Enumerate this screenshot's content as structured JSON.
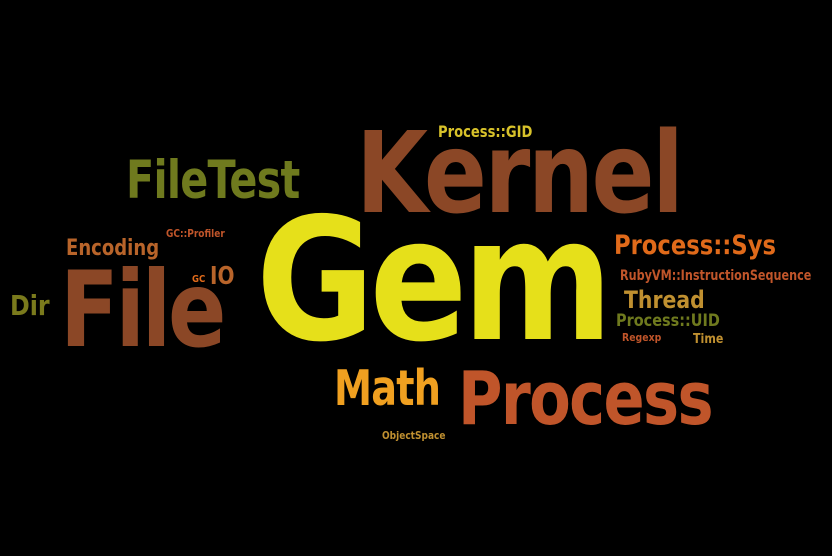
{
  "cloud": {
    "background_color": "#000000",
    "words": {
      "gem": "Gem",
      "kernel": "Kernel",
      "file": "File",
      "process": "Process",
      "filetest": "FileTest",
      "math": "Math",
      "process_sys": "Process::Sys",
      "encoding": "Encoding",
      "dir": "Dir",
      "io": "IO",
      "thread": "Thread",
      "process_uid": "Process::UID",
      "process_gid": "Process::GID",
      "rubyvm": "RubyVM::InstructionSequence",
      "gc_profiler": "GC::Profiler",
      "gc": "GC",
      "regexp": "Regexp",
      "time": "Time",
      "objectspace": "ObjectSpace"
    },
    "colors": {
      "brown": "#8b4726",
      "yellow": "#e6e01a",
      "olive": "#6f7a1e",
      "orange": "#e06a1a",
      "amber": "#f0a020",
      "gold": "#d8c22a"
    }
  }
}
